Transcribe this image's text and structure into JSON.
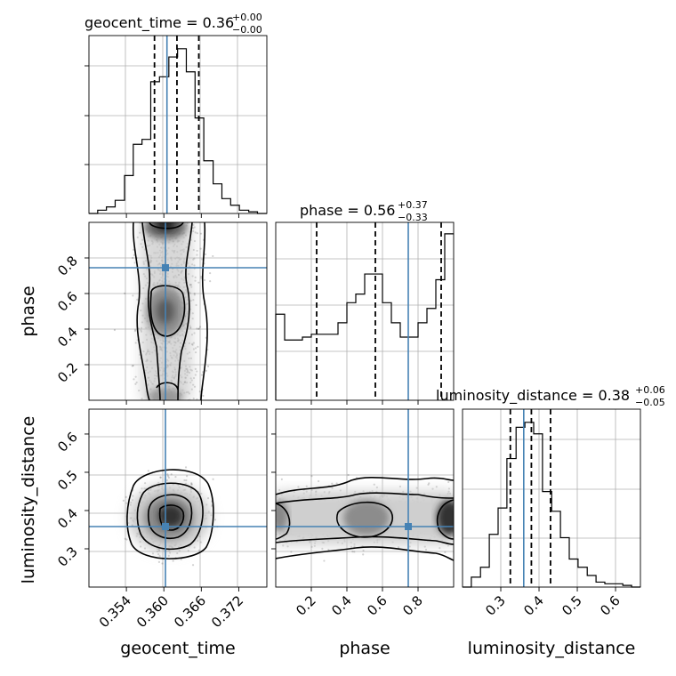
{
  "chart_data": {
    "type": "corner",
    "parameters": [
      "geocent_time",
      "phase",
      "luminosity_distance"
    ],
    "truths": {
      "geocent_time": 0.3605,
      "phase": 0.745,
      "luminosity_distance": 0.36
    },
    "diagonal": [
      {
        "parameter": "geocent_time",
        "title_main": "geocent_time = 0.36",
        "title_sup": "+0.00",
        "title_sub": "−0.00",
        "range": [
          0.348,
          0.3765
        ],
        "ticks": [
          0.354,
          0.36,
          0.366,
          0.372
        ],
        "tick_labels": [
          "0.354",
          "0.360",
          "0.366",
          "0.372"
        ],
        "quantiles": [
          0.3585,
          0.3621,
          0.3656
        ],
        "hist_edges": [
          0.348,
          0.3494,
          0.3508,
          0.3522,
          0.3537,
          0.3551,
          0.3565,
          0.3579,
          0.3593,
          0.3608,
          0.3622,
          0.3636,
          0.365,
          0.3664,
          0.3679,
          0.3693,
          0.3707,
          0.3721,
          0.3736,
          0.375,
          0.3765
        ],
        "hist_counts": [
          0.0,
          0.02,
          0.04,
          0.08,
          0.23,
          0.42,
          0.45,
          0.8,
          0.83,
          0.95,
          1.0,
          0.86,
          0.58,
          0.32,
          0.18,
          0.09,
          0.05,
          0.02,
          0.01,
          0.0
        ]
      },
      {
        "parameter": "phase",
        "title_main": "phase = 0.56",
        "title_sup": "+0.37",
        "title_sub": "−0.33",
        "range": [
          0.0,
          1.0
        ],
        "ticks": [
          0.2,
          0.4,
          0.6,
          0.8
        ],
        "tick_labels": [
          "0.2",
          "0.4",
          "0.6",
          "0.8"
        ],
        "quantiles": [
          0.23,
          0.56,
          0.93
        ],
        "hist_edges": [
          0.0,
          0.05,
          0.1,
          0.15,
          0.2,
          0.25,
          0.3,
          0.35,
          0.4,
          0.45,
          0.5,
          0.55,
          0.6,
          0.65,
          0.7,
          0.75,
          0.8,
          0.85,
          0.9,
          0.95,
          1.0
        ],
        "hist_counts": [
          0.3,
          0.21,
          0.21,
          0.22,
          0.23,
          0.23,
          0.23,
          0.27,
          0.34,
          0.37,
          0.44,
          0.44,
          0.34,
          0.27,
          0.22,
          0.22,
          0.27,
          0.32,
          0.42,
          0.58
        ],
        "hist_ylim": [
          0,
          0.62
        ]
      },
      {
        "parameter": "luminosity_distance",
        "title_main": "luminosity_distance = 0.38",
        "title_sup": "+0.06",
        "title_sub": "−0.05",
        "range": [
          0.2,
          0.665
        ],
        "ticks": [
          0.3,
          0.4,
          0.5,
          0.6
        ],
        "tick_labels": [
          "0.3",
          "0.4",
          "0.5",
          "0.6"
        ],
        "quantiles": [
          0.325,
          0.38,
          0.43
        ],
        "hist_edges": [
          0.2,
          0.223,
          0.247,
          0.27,
          0.293,
          0.316,
          0.34,
          0.363,
          0.386,
          0.409,
          0.433,
          0.456,
          0.479,
          0.502,
          0.526,
          0.549,
          0.572,
          0.595,
          0.619,
          0.642,
          0.665
        ],
        "hist_counts": [
          0.0,
          0.06,
          0.12,
          0.32,
          0.48,
          0.78,
          0.97,
          1.0,
          0.93,
          0.58,
          0.46,
          0.3,
          0.17,
          0.12,
          0.07,
          0.03,
          0.02,
          0.02,
          0.01,
          0.0
        ]
      }
    ],
    "panels_2d": [
      {
        "x": "geocent_time",
        "y": "phase",
        "center_x": 0.3614,
        "density_peaks_y": [
          0.97,
          0.5
        ],
        "ylim": [
          0.0,
          1.0
        ],
        "yticks": [
          0.2,
          0.4,
          0.6,
          0.8
        ],
        "ytick_labels": [
          "0.2",
          "0.4",
          "0.6",
          "0.8"
        ]
      },
      {
        "x": "geocent_time",
        "y": "luminosity_distance",
        "center": [
          0.3614,
          0.37
        ],
        "ylim": [
          0.2,
          0.665
        ],
        "yticks": [
          0.3,
          0.4,
          0.5,
          0.6
        ],
        "ytick_labels": [
          "0.3",
          "0.4",
          "0.5",
          "0.6"
        ]
      },
      {
        "x": "phase",
        "y": "luminosity_distance",
        "density_peaks_x": [
          0.0,
          0.5,
          1.0
        ],
        "center_y": 0.37
      }
    ],
    "xlabels": [
      "geocent_time",
      "phase",
      "luminosity_distance"
    ],
    "ylabels": [
      "phase",
      "luminosity_distance"
    ],
    "grid": true,
    "colors": {
      "truth": "#4682b4",
      "hist": "#000000",
      "density": "#000000"
    }
  }
}
